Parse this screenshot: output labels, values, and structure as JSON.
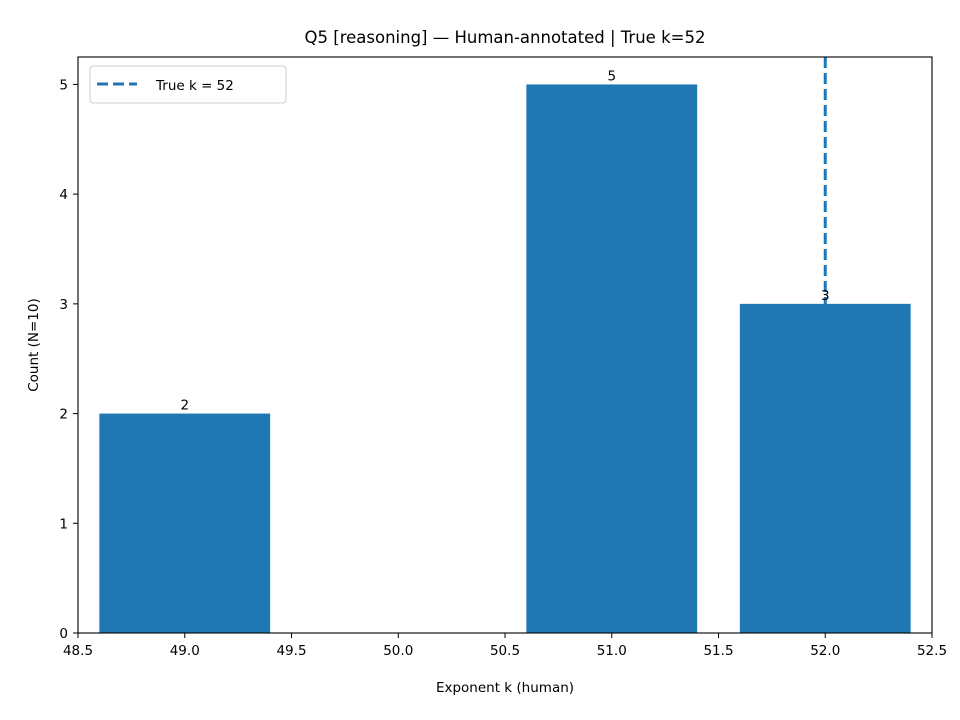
{
  "chart_data": {
    "type": "bar",
    "title": "Q5 [reasoning] — Human-annotated | True k=52",
    "xlabel": "Exponent k (human)",
    "ylabel": "Count (N=10)",
    "bars": [
      {
        "x": 49,
        "value": 2,
        "label": "2"
      },
      {
        "x": 51,
        "value": 5,
        "label": "5"
      },
      {
        "x": 52,
        "value": 3,
        "label": "3"
      }
    ],
    "bar_width": 0.8,
    "bar_color": "#1f77b4",
    "xlim": [
      48.5,
      52.5
    ],
    "ylim": [
      0,
      5.25
    ],
    "xticks": [
      48.5,
      49.0,
      49.5,
      50.0,
      50.5,
      51.0,
      51.5,
      52.0,
      52.5
    ],
    "xtick_labels": [
      "48.5",
      "49.0",
      "49.5",
      "50.0",
      "50.5",
      "51.0",
      "51.5",
      "52.0",
      "52.5"
    ],
    "yticks": [
      0,
      1,
      2,
      3,
      4,
      5
    ],
    "ytick_labels": [
      "0",
      "1",
      "2",
      "3",
      "4",
      "5"
    ],
    "reference_line": {
      "x": 52,
      "style": "dashed",
      "color": "#1f77b4",
      "label": "True k = 52"
    },
    "legend": {
      "position": "top-left",
      "entries": [
        "True k = 52"
      ]
    },
    "grid": false
  }
}
